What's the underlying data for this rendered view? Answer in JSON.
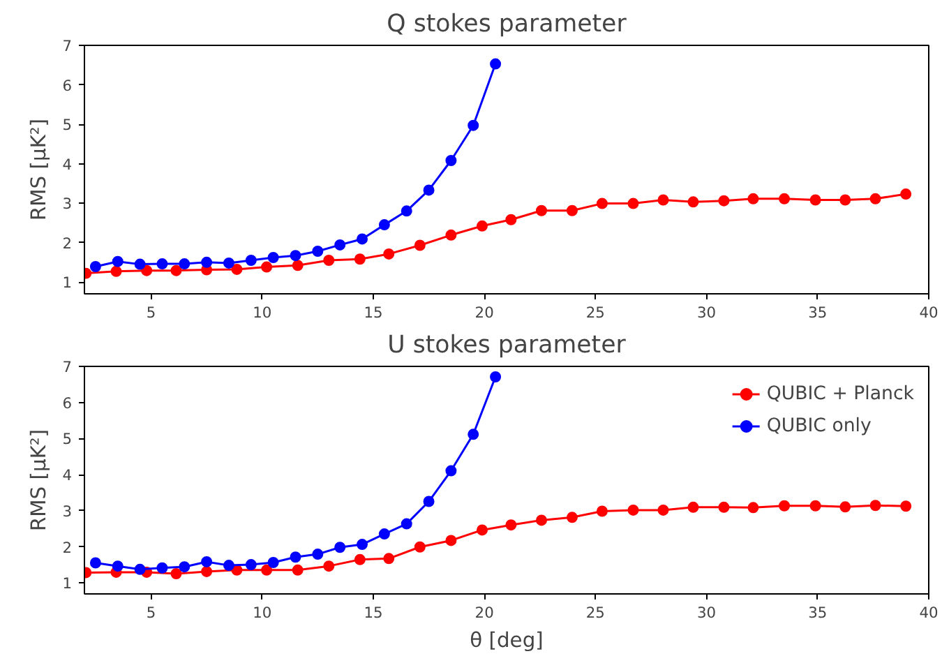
{
  "chart_data": [
    {
      "type": "line",
      "title": "Q stokes parameter",
      "ylabel": "RMS [μK²]",
      "xlim": [
        2,
        40
      ],
      "xticks": [
        5,
        10,
        15,
        20,
        25,
        30,
        35,
        40
      ],
      "ylim": [
        0.7,
        7
      ],
      "yticks": [
        1,
        2,
        3,
        4,
        5,
        6,
        7
      ],
      "grid": false,
      "marker": "circle",
      "line_style": "solid",
      "series": [
        {
          "color": "#ff0000",
          "x": [
            2.07,
            3.43,
            4.8,
            6.13,
            7.5,
            8.86,
            10.2,
            11.6,
            13.0,
            14.4,
            15.7,
            17.1,
            18.5,
            19.9,
            21.2,
            22.57,
            23.95,
            25.3,
            26.7,
            28.05,
            29.4,
            30.78,
            32.1,
            33.5,
            34.9,
            36.24,
            37.6,
            38.97
          ],
          "values": [
            1.22,
            1.27,
            1.29,
            1.29,
            1.31,
            1.32,
            1.38,
            1.42,
            1.55,
            1.58,
            1.71,
            1.93,
            2.19,
            2.42,
            2.58,
            2.81,
            2.81,
            2.99,
            2.99,
            3.08,
            3.03,
            3.06,
            3.11,
            3.11,
            3.08,
            3.08,
            3.11,
            3.23
          ]
        },
        {
          "color": "#0000ff",
          "x": [
            2.5,
            3.5,
            4.5,
            5.5,
            6.5,
            7.5,
            8.5,
            9.5,
            10.5,
            11.5,
            12.5,
            13.5,
            14.5,
            15.5,
            16.5,
            17.5,
            18.5,
            19.5,
            20.5
          ],
          "values": [
            1.39,
            1.52,
            1.45,
            1.46,
            1.46,
            1.5,
            1.48,
            1.55,
            1.62,
            1.67,
            1.78,
            1.94,
            2.09,
            2.45,
            2.8,
            3.33,
            4.08,
            4.97,
            6.53
          ]
        }
      ]
    },
    {
      "type": "line",
      "title": "U stokes parameter",
      "xlabel": "θ [deg]",
      "ylabel": "RMS [μK²]",
      "xlim": [
        2,
        40
      ],
      "xticks": [
        5,
        10,
        15,
        20,
        25,
        30,
        35,
        40
      ],
      "ylim": [
        0.7,
        7
      ],
      "yticks": [
        1,
        2,
        3,
        4,
        5,
        6,
        7
      ],
      "grid": false,
      "marker": "circle",
      "line_style": "solid",
      "legend": "top right",
      "series": [
        {
          "name": "QUBIC + Planck",
          "color": "#ff0000",
          "x": [
            2.07,
            3.43,
            4.8,
            6.13,
            7.5,
            8.86,
            10.2,
            11.6,
            13.0,
            14.4,
            15.7,
            17.1,
            18.5,
            19.9,
            21.2,
            22.57,
            23.95,
            25.3,
            26.7,
            28.05,
            29.4,
            30.78,
            32.1,
            33.5,
            34.9,
            36.24,
            37.6,
            38.97
          ],
          "values": [
            1.29,
            1.3,
            1.3,
            1.26,
            1.32,
            1.36,
            1.36,
            1.36,
            1.47,
            1.65,
            1.68,
            2.0,
            2.18,
            2.47,
            2.61,
            2.74,
            2.82,
            2.99,
            3.02,
            3.02,
            3.1,
            3.1,
            3.09,
            3.14,
            3.14,
            3.11,
            3.15,
            3.13
          ]
        },
        {
          "name": "QUBIC only",
          "color": "#0000ff",
          "x": [
            2.5,
            3.5,
            4.5,
            5.5,
            6.5,
            7.5,
            8.5,
            9.5,
            10.5,
            11.5,
            12.5,
            13.5,
            14.5,
            15.5,
            16.5,
            17.5,
            18.5,
            19.5,
            20.5
          ],
          "values": [
            1.56,
            1.47,
            1.38,
            1.42,
            1.45,
            1.59,
            1.49,
            1.51,
            1.57,
            1.72,
            1.8,
            1.99,
            2.07,
            2.36,
            2.64,
            3.26,
            4.11,
            5.12,
            6.71
          ]
        }
      ]
    }
  ]
}
